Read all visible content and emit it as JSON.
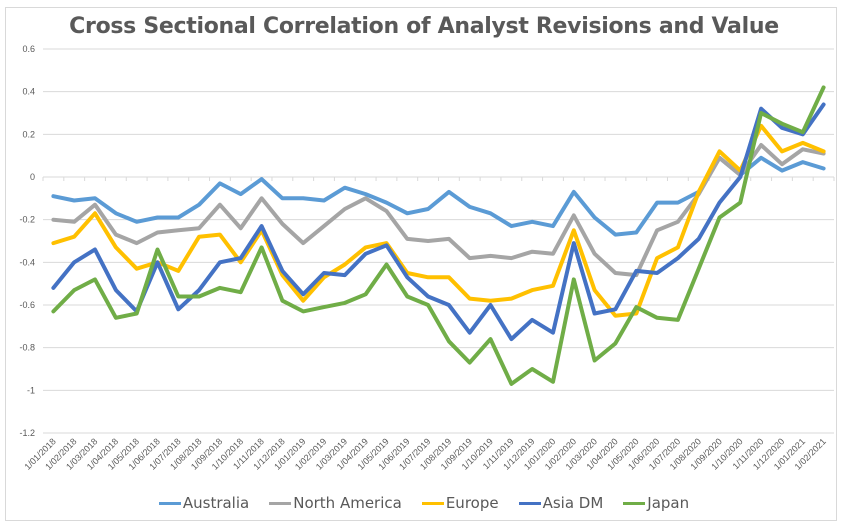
{
  "chart_data": {
    "type": "line",
    "title": "Cross Sectional Correlation of Analyst Revisions and Value",
    "xlabel": "",
    "ylabel": "",
    "ylim": [
      -1.2,
      0.6
    ],
    "yticks": [
      0.6,
      0.4,
      0.2,
      0,
      -0.2,
      -0.4,
      -0.6,
      -0.8,
      -1,
      -1.2
    ],
    "ytick_labels": [
      "0.6",
      "0.4",
      "0.2",
      "0",
      "-0.2",
      "-0.4",
      "-0.6",
      "-0.8",
      "-1",
      "-1.2"
    ],
    "grid": true,
    "legend_position": "bottom",
    "categories": [
      "1/01/2018",
      "1/02/2018",
      "1/03/2018",
      "1/04/2018",
      "1/05/2018",
      "1/06/2018",
      "1/07/2018",
      "1/08/2018",
      "1/09/2018",
      "1/10/2018",
      "1/11/2018",
      "1/12/2018",
      "1/01/2019",
      "1/02/2019",
      "1/03/2019",
      "1/04/2019",
      "1/05/2019",
      "1/06/2019",
      "1/07/2019",
      "1/08/2019",
      "1/09/2019",
      "1/10/2019",
      "1/11/2019",
      "1/12/2019",
      "1/01/2020",
      "1/02/2020",
      "1/03/2020",
      "1/04/2020",
      "1/05/2020",
      "1/06/2020",
      "1/07/2020",
      "1/08/2020",
      "1/09/2020",
      "1/10/2020",
      "1/11/2020",
      "1/12/2020",
      "1/01/2021",
      "1/02/2021"
    ],
    "series": [
      {
        "name": "Australia",
        "color": "#5b9bd5",
        "values": [
          -0.09,
          -0.11,
          -0.1,
          -0.17,
          -0.21,
          -0.19,
          -0.19,
          -0.13,
          -0.03,
          -0.08,
          -0.01,
          -0.1,
          -0.1,
          -0.11,
          -0.05,
          -0.08,
          -0.12,
          -0.17,
          -0.15,
          -0.07,
          -0.14,
          -0.17,
          -0.23,
          -0.21,
          -0.23,
          -0.07,
          -0.19,
          -0.27,
          -0.26,
          -0.12,
          -0.12,
          -0.07,
          0.09,
          0.01,
          0.09,
          0.03,
          0.07,
          0.04
        ]
      },
      {
        "name": "North America",
        "color": "#a5a5a5",
        "values": [
          -0.2,
          -0.21,
          -0.13,
          -0.27,
          -0.31,
          -0.26,
          -0.25,
          -0.24,
          -0.13,
          -0.24,
          -0.1,
          -0.22,
          -0.31,
          -0.23,
          -0.15,
          -0.1,
          -0.16,
          -0.29,
          -0.3,
          -0.29,
          -0.38,
          -0.37,
          -0.38,
          -0.35,
          -0.36,
          -0.18,
          -0.36,
          -0.45,
          -0.46,
          -0.25,
          -0.21,
          -0.08,
          0.09,
          0.01,
          0.15,
          0.06,
          0.13,
          0.11
        ]
      },
      {
        "name": "Europe",
        "color": "#ffc000",
        "values": [
          -0.31,
          -0.28,
          -0.17,
          -0.33,
          -0.43,
          -0.4,
          -0.44,
          -0.28,
          -0.27,
          -0.4,
          -0.25,
          -0.46,
          -0.58,
          -0.47,
          -0.41,
          -0.33,
          -0.31,
          -0.45,
          -0.47,
          -0.47,
          -0.57,
          -0.58,
          -0.57,
          -0.53,
          -0.51,
          -0.25,
          -0.53,
          -0.65,
          -0.64,
          -0.38,
          -0.33,
          -0.07,
          0.12,
          0.03,
          0.24,
          0.12,
          0.16,
          0.12
        ]
      },
      {
        "name": "Asia DM",
        "color": "#4472c4",
        "values": [
          -0.52,
          -0.4,
          -0.34,
          -0.53,
          -0.63,
          -0.4,
          -0.62,
          -0.53,
          -0.4,
          -0.38,
          -0.23,
          -0.44,
          -0.55,
          -0.45,
          -0.46,
          -0.36,
          -0.32,
          -0.47,
          -0.56,
          -0.6,
          -0.73,
          -0.6,
          -0.76,
          -0.67,
          -0.73,
          -0.31,
          -0.64,
          -0.62,
          -0.44,
          -0.45,
          -0.38,
          -0.29,
          -0.12,
          0.0,
          0.32,
          0.23,
          0.2,
          0.34
        ]
      },
      {
        "name": "Japan",
        "color": "#70ad47",
        "values": [
          -0.63,
          -0.53,
          -0.48,
          -0.66,
          -0.64,
          -0.34,
          -0.56,
          -0.56,
          -0.52,
          -0.54,
          -0.33,
          -0.58,
          -0.63,
          -0.61,
          -0.59,
          -0.55,
          -0.41,
          -0.56,
          -0.6,
          -0.77,
          -0.87,
          -0.76,
          -0.97,
          -0.9,
          -0.96,
          -0.48,
          -0.86,
          -0.78,
          -0.61,
          -0.66,
          -0.67,
          -0.43,
          -0.19,
          -0.12,
          0.3,
          0.25,
          0.21,
          0.42
        ]
      }
    ]
  }
}
